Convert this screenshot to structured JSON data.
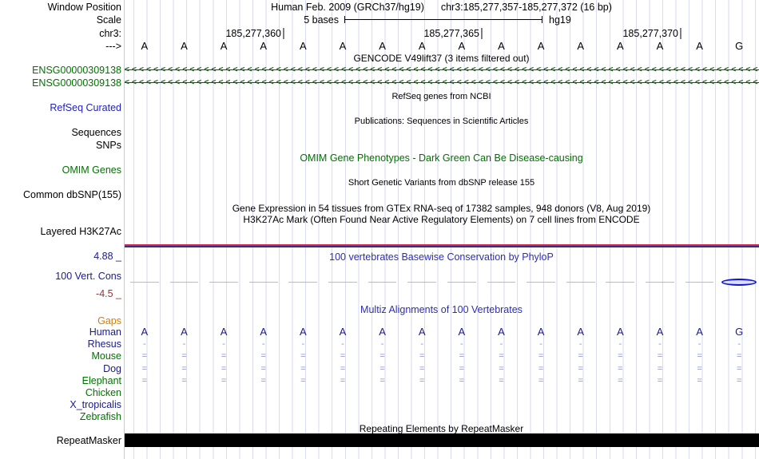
{
  "header": {
    "window_position_label": "Window Position",
    "assembly_title": "Human Feb. 2009 (GRCh37/hg19)",
    "position": "chr3:185,277,357-185,277,372 (16 bp)"
  },
  "scale": {
    "label": "Scale",
    "bar_text": "5 bases",
    "assembly": "hg19"
  },
  "ruler": {
    "label": "chr3:",
    "ticks": [
      "185,277,360",
      "185,277,365",
      "185,277,370"
    ],
    "strand_label": "--->"
  },
  "sequence": {
    "bases": [
      "A",
      "A",
      "A",
      "A",
      "A",
      "A",
      "A",
      "A",
      "A",
      "A",
      "A",
      "A",
      "A",
      "A",
      "A",
      "G"
    ]
  },
  "gencode": {
    "title": "GENCODE V49lift37 (3 items filtered out)",
    "arrow_char": "<",
    "genes": [
      {
        "id": "ENSG00000309138"
      },
      {
        "id": "ENSG00000309138"
      }
    ]
  },
  "refseq": {
    "center_title": "RefSeq genes from NCBI",
    "label": "RefSeq Curated"
  },
  "publications": {
    "center_title": "Publications: Sequences in Scientific Articles",
    "sequences_label": "Sequences",
    "snps_label": "SNPs"
  },
  "omim": {
    "center_title": "OMIM Gene Phenotypes - Dark Green Can Be Disease-causing",
    "label": "OMIM Genes"
  },
  "dbsnp": {
    "center_title": "Short Genetic Variants from dbSNP release 155",
    "label": "Common dbSNP(155)"
  },
  "gtex": {
    "center_title": "Gene Expression in 54 tissues from GTEx RNA-seq of 17382 samples, 948 donors (V8, Aug 2019)"
  },
  "h3k27ac": {
    "center_title": "H3K27Ac Mark (Often Found Near Active Regulatory Elements) on 7 cell lines from ENCODE",
    "label": "Layered H3K27Ac"
  },
  "conservation": {
    "center_title": "100 vertebrates Basewise Conservation by PhyloP",
    "label": "100 Vert. Cons",
    "max_label": "4.88 _",
    "min_label": "-4.5 _",
    "negative_score_base_index": 15
  },
  "multiz": {
    "center_title": "Multiz Alignments of 100 Vertebrates",
    "gaps_label": "Gaps",
    "species": [
      {
        "name": "Human",
        "color": "#1a1a8c",
        "glyph": "seq"
      },
      {
        "name": "Rhesus",
        "color": "#1a1a8c",
        "glyph": "-"
      },
      {
        "name": "Mouse",
        "color": "#007200",
        "glyph": "="
      },
      {
        "name": "Dog",
        "color": "#1a1a8c",
        "glyph": "="
      },
      {
        "name": "Elephant",
        "color": "#007200",
        "glyph": "="
      },
      {
        "name": "Chicken",
        "color": "#007200",
        "glyph": ""
      },
      {
        "name": "X_tropicalis",
        "color": "#1a1a8c",
        "glyph": ""
      },
      {
        "name": "Zebrafish",
        "color": "#007200",
        "glyph": ""
      }
    ]
  },
  "repeatmasker": {
    "center_title": "Repeating Elements by RepeatMasker",
    "label": "RepeatMasker"
  },
  "colors": {
    "gene_green": "#007200",
    "track_blue": "#2d2db4",
    "species_navy": "#1a1a8c",
    "gaps_orange": "#d97c00",
    "conservation_pink": "#ff9e9e",
    "gridline": "#dadaf0",
    "edge_pink": "#ffb3b3"
  }
}
